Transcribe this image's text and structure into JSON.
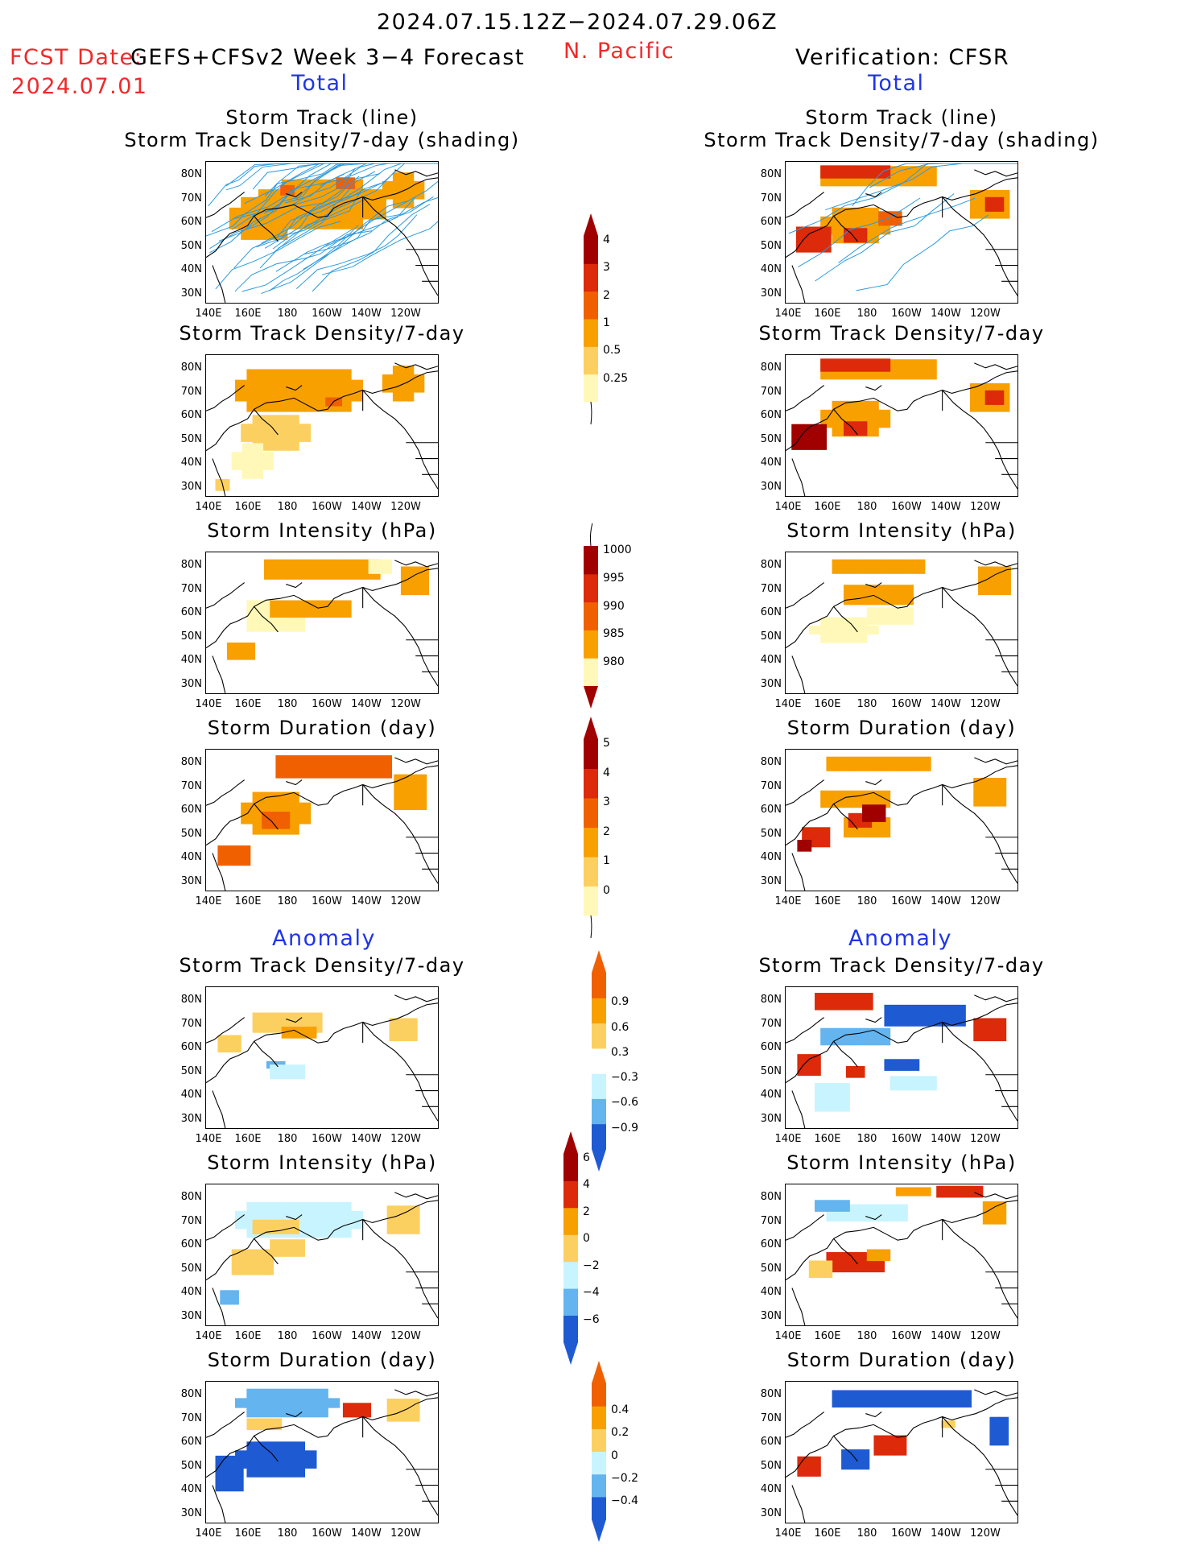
{
  "header": {
    "period": "2024.07.15.12Z−2024.07.29.06Z",
    "fcst_label": "FCST Date:",
    "fcst_model": "GEFS+CFSv2 Week 3−4 Forecast",
    "fcst_date": "2024.07.01",
    "region": "N. Pacific",
    "verification": "Verification: CFSR",
    "left_total": "Total",
    "right_total": "Total",
    "left_anomaly": "Anomaly",
    "right_anomaly": "Anomaly"
  },
  "axes": {
    "lat_ticks": [
      "80N",
      "70N",
      "60N",
      "50N",
      "40N",
      "30N"
    ],
    "lon_ticks": [
      "140E",
      "160E",
      "180",
      "160W",
      "140W",
      "120W"
    ]
  },
  "colors": {
    "dark_red": "#a00000",
    "red": "#dc2a0a",
    "orange_red": "#f06000",
    "orange": "#f8a000",
    "gold": "#fcd060",
    "pale_yellow": "#fff8b8",
    "light_blue": "#c8f4ff",
    "mid_blue": "#64b4f0",
    "blue": "#1e5ad2",
    "track_line": "#2a9ae0"
  },
  "panels": [
    {
      "id": "l1",
      "title1": "Storm Track (line)",
      "title2": "Storm Track Density/7-day (shading)",
      "blobs": [
        [
          0.5,
          0.3,
          0.55,
          0.35,
          "#f8a000"
        ],
        [
          0.25,
          0.4,
          0.3,
          0.3,
          "#f8a000"
        ],
        [
          0.85,
          0.2,
          0.18,
          0.25,
          "#f8a000"
        ],
        [
          0.6,
          0.15,
          0.08,
          0.08,
          "#f06000"
        ],
        [
          0.35,
          0.2,
          0.06,
          0.07,
          "#f06000"
        ]
      ]
    },
    {
      "id": "r1",
      "title1": "Storm Track (line)",
      "title2": "Storm Track Density/7-day (shading)",
      "blobs": [
        [
          0.4,
          0.1,
          0.5,
          0.14,
          "#f8a000"
        ],
        [
          0.3,
          0.07,
          0.3,
          0.09,
          "#dc2a0a"
        ],
        [
          0.3,
          0.45,
          0.3,
          0.25,
          "#f8a000"
        ],
        [
          0.12,
          0.55,
          0.15,
          0.18,
          "#dc2a0a"
        ],
        [
          0.3,
          0.52,
          0.1,
          0.1,
          "#dc2a0a"
        ],
        [
          0.88,
          0.3,
          0.17,
          0.2,
          "#f8a000"
        ],
        [
          0.9,
          0.3,
          0.08,
          0.1,
          "#dc2a0a"
        ],
        [
          0.45,
          0.4,
          0.1,
          0.1,
          "#f06000"
        ]
      ]
    },
    {
      "id": "l2",
      "title1": "",
      "title2": "Storm Track Density/7-day",
      "blobs": [
        [
          0.4,
          0.25,
          0.55,
          0.3,
          "#f8a000"
        ],
        [
          0.3,
          0.55,
          0.3,
          0.25,
          "#fcd060"
        ],
        [
          0.2,
          0.75,
          0.18,
          0.25,
          "#fff8b8"
        ],
        [
          0.85,
          0.2,
          0.18,
          0.25,
          "#f8a000"
        ],
        [
          0.55,
          0.33,
          0.07,
          0.06,
          "#f06000"
        ],
        [
          0.07,
          0.92,
          0.06,
          0.08,
          "#fcd060"
        ]
      ]
    },
    {
      "id": "r2",
      "title1": "",
      "title2": "Storm Track Density/7-day",
      "blobs": [
        [
          0.4,
          0.1,
          0.5,
          0.14,
          "#f8a000"
        ],
        [
          0.3,
          0.07,
          0.3,
          0.09,
          "#dc2a0a"
        ],
        [
          0.3,
          0.45,
          0.3,
          0.25,
          "#f8a000"
        ],
        [
          0.1,
          0.58,
          0.15,
          0.18,
          "#a00000"
        ],
        [
          0.3,
          0.52,
          0.1,
          0.1,
          "#dc2a0a"
        ],
        [
          0.88,
          0.3,
          0.17,
          0.2,
          "#f8a000"
        ],
        [
          0.9,
          0.3,
          0.08,
          0.1,
          "#dc2a0a"
        ]
      ]
    },
    {
      "id": "l3",
      "title1": "",
      "title2": "Storm Intensity (hPa)",
      "blobs": [
        [
          0.5,
          0.12,
          0.5,
          0.14,
          "#f8a000"
        ],
        [
          0.3,
          0.45,
          0.25,
          0.22,
          "#fff8b8"
        ],
        [
          0.45,
          0.4,
          0.35,
          0.12,
          "#f8a000"
        ],
        [
          0.15,
          0.7,
          0.12,
          0.12,
          "#f8a000"
        ],
        [
          0.9,
          0.2,
          0.12,
          0.2,
          "#f8a000"
        ],
        [
          0.75,
          0.1,
          0.1,
          0.1,
          "#fff8b8"
        ]
      ]
    },
    {
      "id": "r3",
      "title1": "",
      "title2": "Storm Intensity (hPa)",
      "blobs": [
        [
          0.4,
          0.1,
          0.4,
          0.1,
          "#f8a000"
        ],
        [
          0.25,
          0.55,
          0.3,
          0.18,
          "#fff8b8"
        ],
        [
          0.4,
          0.3,
          0.3,
          0.14,
          "#f8a000"
        ],
        [
          0.9,
          0.2,
          0.14,
          0.2,
          "#f8a000"
        ],
        [
          0.45,
          0.45,
          0.2,
          0.12,
          "#fff8b8"
        ]
      ]
    },
    {
      "id": "l4",
      "title1": "",
      "title2": "Storm Duration (day)",
      "blobs": [
        [
          0.55,
          0.12,
          0.5,
          0.16,
          "#f06000"
        ],
        [
          0.3,
          0.45,
          0.3,
          0.3,
          "#f8a000"
        ],
        [
          0.3,
          0.5,
          0.12,
          0.12,
          "#f06000"
        ],
        [
          0.12,
          0.75,
          0.14,
          0.14,
          "#f06000"
        ],
        [
          0.88,
          0.3,
          0.14,
          0.25,
          "#f8a000"
        ]
      ]
    },
    {
      "id": "r4",
      "title1": "",
      "title2": "Storm Duration (day)",
      "blobs": [
        [
          0.4,
          0.1,
          0.45,
          0.1,
          "#f8a000"
        ],
        [
          0.3,
          0.35,
          0.3,
          0.12,
          "#f8a000"
        ],
        [
          0.35,
          0.55,
          0.2,
          0.14,
          "#f8a000"
        ],
        [
          0.13,
          0.62,
          0.12,
          0.14,
          "#dc2a0a"
        ],
        [
          0.32,
          0.5,
          0.1,
          0.1,
          "#dc2a0a"
        ],
        [
          0.38,
          0.45,
          0.1,
          0.12,
          "#a00000"
        ],
        [
          0.88,
          0.3,
          0.14,
          0.2,
          "#f8a000"
        ],
        [
          0.08,
          0.68,
          0.06,
          0.08,
          "#a00000"
        ]
      ]
    },
    {
      "id": "l5",
      "title1": "",
      "title2": "Storm Track Density/7-day",
      "blobs": [
        [
          0.35,
          0.25,
          0.3,
          0.14,
          "#fcd060"
        ],
        [
          0.4,
          0.32,
          0.15,
          0.08,
          "#f8a000"
        ],
        [
          0.1,
          0.4,
          0.1,
          0.12,
          "#fcd060"
        ],
        [
          0.3,
          0.55,
          0.08,
          0.05,
          "#64b4f0"
        ],
        [
          0.85,
          0.3,
          0.12,
          0.16,
          "#fcd060"
        ],
        [
          0.35,
          0.6,
          0.15,
          0.1,
          "#c8f4ff"
        ]
      ]
    },
    {
      "id": "r5",
      "title1": "",
      "title2": "Storm Track Density/7-day",
      "blobs": [
        [
          0.25,
          0.1,
          0.25,
          0.12,
          "#dc2a0a"
        ],
        [
          0.6,
          0.2,
          0.35,
          0.15,
          "#1e5ad2"
        ],
        [
          0.3,
          0.35,
          0.3,
          0.12,
          "#64b4f0"
        ],
        [
          0.1,
          0.55,
          0.1,
          0.15,
          "#dc2a0a"
        ],
        [
          0.3,
          0.6,
          0.08,
          0.08,
          "#dc2a0a"
        ],
        [
          0.5,
          0.55,
          0.15,
          0.08,
          "#1e5ad2"
        ],
        [
          0.88,
          0.3,
          0.14,
          0.16,
          "#dc2a0a"
        ],
        [
          0.2,
          0.78,
          0.15,
          0.2,
          "#c8f4ff"
        ],
        [
          0.55,
          0.68,
          0.2,
          0.1,
          "#c8f4ff"
        ]
      ]
    },
    {
      "id": "l6",
      "title1": "",
      "title2": "Storm Intensity (hPa)",
      "blobs": [
        [
          0.4,
          0.25,
          0.55,
          0.25,
          "#c8f4ff"
        ],
        [
          0.3,
          0.3,
          0.2,
          0.1,
          "#fcd060"
        ],
        [
          0.2,
          0.55,
          0.18,
          0.18,
          "#fcd060"
        ],
        [
          0.35,
          0.45,
          0.15,
          0.12,
          "#fcd060"
        ],
        [
          0.1,
          0.8,
          0.08,
          0.1,
          "#64b4f0"
        ],
        [
          0.85,
          0.25,
          0.14,
          0.2,
          "#fcd060"
        ]
      ]
    },
    {
      "id": "r6",
      "title1": "",
      "title2": "Storm Intensity (hPa)",
      "blobs": [
        [
          0.35,
          0.2,
          0.35,
          0.12,
          "#c8f4ff"
        ],
        [
          0.2,
          0.15,
          0.15,
          0.08,
          "#64b4f0"
        ],
        [
          0.3,
          0.55,
          0.25,
          0.14,
          "#dc2a0a"
        ],
        [
          0.15,
          0.6,
          0.1,
          0.12,
          "#fcd060"
        ],
        [
          0.75,
          0.05,
          0.2,
          0.08,
          "#dc2a0a"
        ],
        [
          0.9,
          0.2,
          0.1,
          0.16,
          "#f8a000"
        ],
        [
          0.55,
          0.05,
          0.15,
          0.06,
          "#f8a000"
        ],
        [
          0.4,
          0.5,
          0.1,
          0.08,
          "#f8a000"
        ]
      ]
    },
    {
      "id": "l7",
      "title1": "",
      "title2": "Storm Duration (day)",
      "blobs": [
        [
          0.35,
          0.15,
          0.45,
          0.2,
          "#64b4f0"
        ],
        [
          0.3,
          0.55,
          0.35,
          0.25,
          "#1e5ad2"
        ],
        [
          0.1,
          0.65,
          0.12,
          0.25,
          "#1e5ad2"
        ],
        [
          0.65,
          0.2,
          0.12,
          0.1,
          "#dc2a0a"
        ],
        [
          0.85,
          0.2,
          0.14,
          0.16,
          "#fcd060"
        ],
        [
          0.25,
          0.3,
          0.15,
          0.08,
          "#fcd060"
        ]
      ]
    },
    {
      "id": "r7",
      "title1": "",
      "title2": "Storm Duration (day)",
      "blobs": [
        [
          0.5,
          0.12,
          0.6,
          0.12,
          "#1e5ad2"
        ],
        [
          0.1,
          0.6,
          0.1,
          0.14,
          "#dc2a0a"
        ],
        [
          0.3,
          0.55,
          0.12,
          0.14,
          "#1e5ad2"
        ],
        [
          0.45,
          0.45,
          0.14,
          0.14,
          "#dc2a0a"
        ],
        [
          0.7,
          0.3,
          0.06,
          0.05,
          "#fcd060"
        ],
        [
          0.92,
          0.35,
          0.08,
          0.2,
          "#1e5ad2"
        ]
      ]
    }
  ],
  "colorbars": [
    {
      "id": "cb1",
      "bins": [
        "#fff8b8",
        "#fcd060",
        "#f8a000",
        "#f06000",
        "#dc2a0a",
        "#a00000"
      ],
      "labels": [
        "0.25",
        "0.5",
        "1",
        "2",
        "3",
        "4"
      ],
      "direction": "up"
    },
    {
      "id": "cb2",
      "bins": [
        "#fff8b8",
        "#f8a000",
        "#f06000",
        "#dc2a0a",
        "#a00000"
      ],
      "labels": [
        "1000",
        "995",
        "990",
        "985",
        "980"
      ],
      "direction": "down"
    },
    {
      "id": "cb3",
      "bins": [
        "#fff8b8",
        "#fcd060",
        "#f8a000",
        "#f06000",
        "#dc2a0a",
        "#a00000"
      ],
      "labels": [
        "0",
        "1",
        "2",
        "3",
        "4",
        "5"
      ],
      "direction": "up"
    },
    {
      "id": "cb4",
      "bins": [
        "#1e5ad2",
        "#64b4f0",
        "#c8f4ff",
        "#ffffff",
        "#fcd060",
        "#f8a000",
        "#f06000"
      ],
      "labels": [
        "−0.9",
        "−0.6",
        "−0.3",
        "0.3",
        "0.6",
        "0.9"
      ],
      "direction": "both"
    },
    {
      "id": "cb5",
      "bins": [
        "#1e5ad2",
        "#64b4f0",
        "#c8f4ff",
        "#fcd060",
        "#f8a000",
        "#dc2a0a",
        "#a00000"
      ],
      "labels": [
        "−6",
        "−4",
        "−2",
        "0",
        "2",
        "4",
        "6"
      ],
      "direction": "both"
    },
    {
      "id": "cb6",
      "bins": [
        "#1e5ad2",
        "#64b4f0",
        "#c8f4ff",
        "#fcd060",
        "#f8a000",
        "#f06000"
      ],
      "labels": [
        "−0.4",
        "−0.2",
        "0",
        "0.2",
        "0.4"
      ],
      "direction": "both"
    }
  ],
  "chart_data": {
    "type": "heatmap",
    "title": "2024.07.15.12Z−2024.07.29.06Z",
    "region": "N. Pacific",
    "lat_ticks": [
      "80N",
      "70N",
      "60N",
      "50N",
      "40N",
      "30N"
    ],
    "lon_ticks": [
      "140E",
      "160E",
      "180",
      "160W",
      "140W",
      "120W"
    ]
  }
}
